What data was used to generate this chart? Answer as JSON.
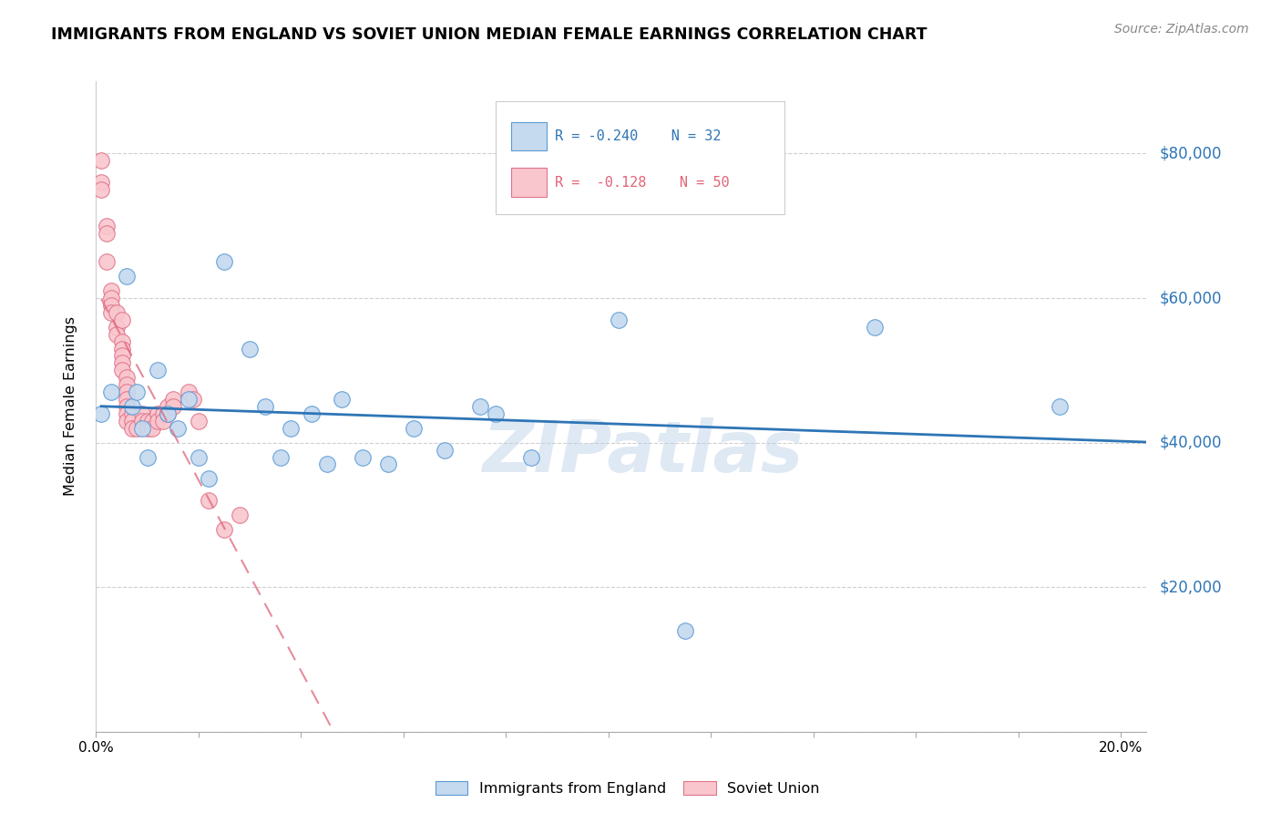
{
  "title": "IMMIGRANTS FROM ENGLAND VS SOVIET UNION MEDIAN FEMALE EARNINGS CORRELATION CHART",
  "source": "Source: ZipAtlas.com",
  "ylabel": "Median Female Earnings",
  "watermark": "ZIPatlas",
  "legend_england": "Immigrants from England",
  "legend_soviet": "Soviet Union",
  "r_england": -0.24,
  "n_england": 32,
  "r_soviet": -0.128,
  "n_soviet": 50,
  "england_face_color": "#c5d9ef",
  "england_edge_color": "#5b9bd5",
  "soviet_face_color": "#f9c6ce",
  "soviet_edge_color": "#e0748a",
  "england_line_color": "#2e75b6",
  "soviet_line_color": "#e06478",
  "right_axis_color": "#2e75b6",
  "grid_color": "#d0d0d0",
  "y_ticks": [
    0,
    20000,
    40000,
    60000,
    80000
  ],
  "y_tick_labels": [
    "",
    "$20,000",
    "$40,000",
    "$60,000",
    "$80,000"
  ],
  "xlim": [
    0.0,
    0.205
  ],
  "ylim": [
    0,
    90000
  ],
  "england_x": [
    0.001,
    0.003,
    0.006,
    0.007,
    0.008,
    0.009,
    0.01,
    0.012,
    0.014,
    0.016,
    0.018,
    0.02,
    0.022,
    0.025,
    0.03,
    0.033,
    0.036,
    0.038,
    0.042,
    0.045,
    0.048,
    0.052,
    0.057,
    0.062,
    0.068,
    0.075,
    0.078,
    0.085,
    0.102,
    0.115,
    0.152,
    0.188
  ],
  "england_y": [
    44000,
    47000,
    63000,
    45000,
    47000,
    42000,
    38000,
    50000,
    44000,
    42000,
    46000,
    38000,
    35000,
    65000,
    53000,
    45000,
    38000,
    42000,
    44000,
    37000,
    46000,
    38000,
    37000,
    42000,
    39000,
    45000,
    44000,
    38000,
    57000,
    14000,
    56000,
    45000
  ],
  "soviet_x": [
    0.001,
    0.001,
    0.001,
    0.002,
    0.002,
    0.002,
    0.003,
    0.003,
    0.003,
    0.003,
    0.004,
    0.004,
    0.004,
    0.005,
    0.005,
    0.005,
    0.005,
    0.005,
    0.005,
    0.006,
    0.006,
    0.006,
    0.006,
    0.006,
    0.006,
    0.006,
    0.007,
    0.007,
    0.007,
    0.008,
    0.009,
    0.009,
    0.01,
    0.01,
    0.011,
    0.011,
    0.012,
    0.012,
    0.013,
    0.013,
    0.014,
    0.014,
    0.015,
    0.015,
    0.018,
    0.019,
    0.02,
    0.022,
    0.025,
    0.028
  ],
  "soviet_y": [
    79000,
    76000,
    75000,
    70000,
    69000,
    65000,
    61000,
    60000,
    59000,
    58000,
    58000,
    56000,
    55000,
    57000,
    54000,
    53000,
    52000,
    51000,
    50000,
    49000,
    48000,
    47000,
    46000,
    45000,
    44000,
    43000,
    44000,
    43000,
    42000,
    42000,
    44000,
    43000,
    43000,
    42000,
    43000,
    42000,
    44000,
    43000,
    44000,
    43000,
    45000,
    44000,
    46000,
    45000,
    47000,
    46000,
    43000,
    32000,
    28000,
    30000
  ]
}
